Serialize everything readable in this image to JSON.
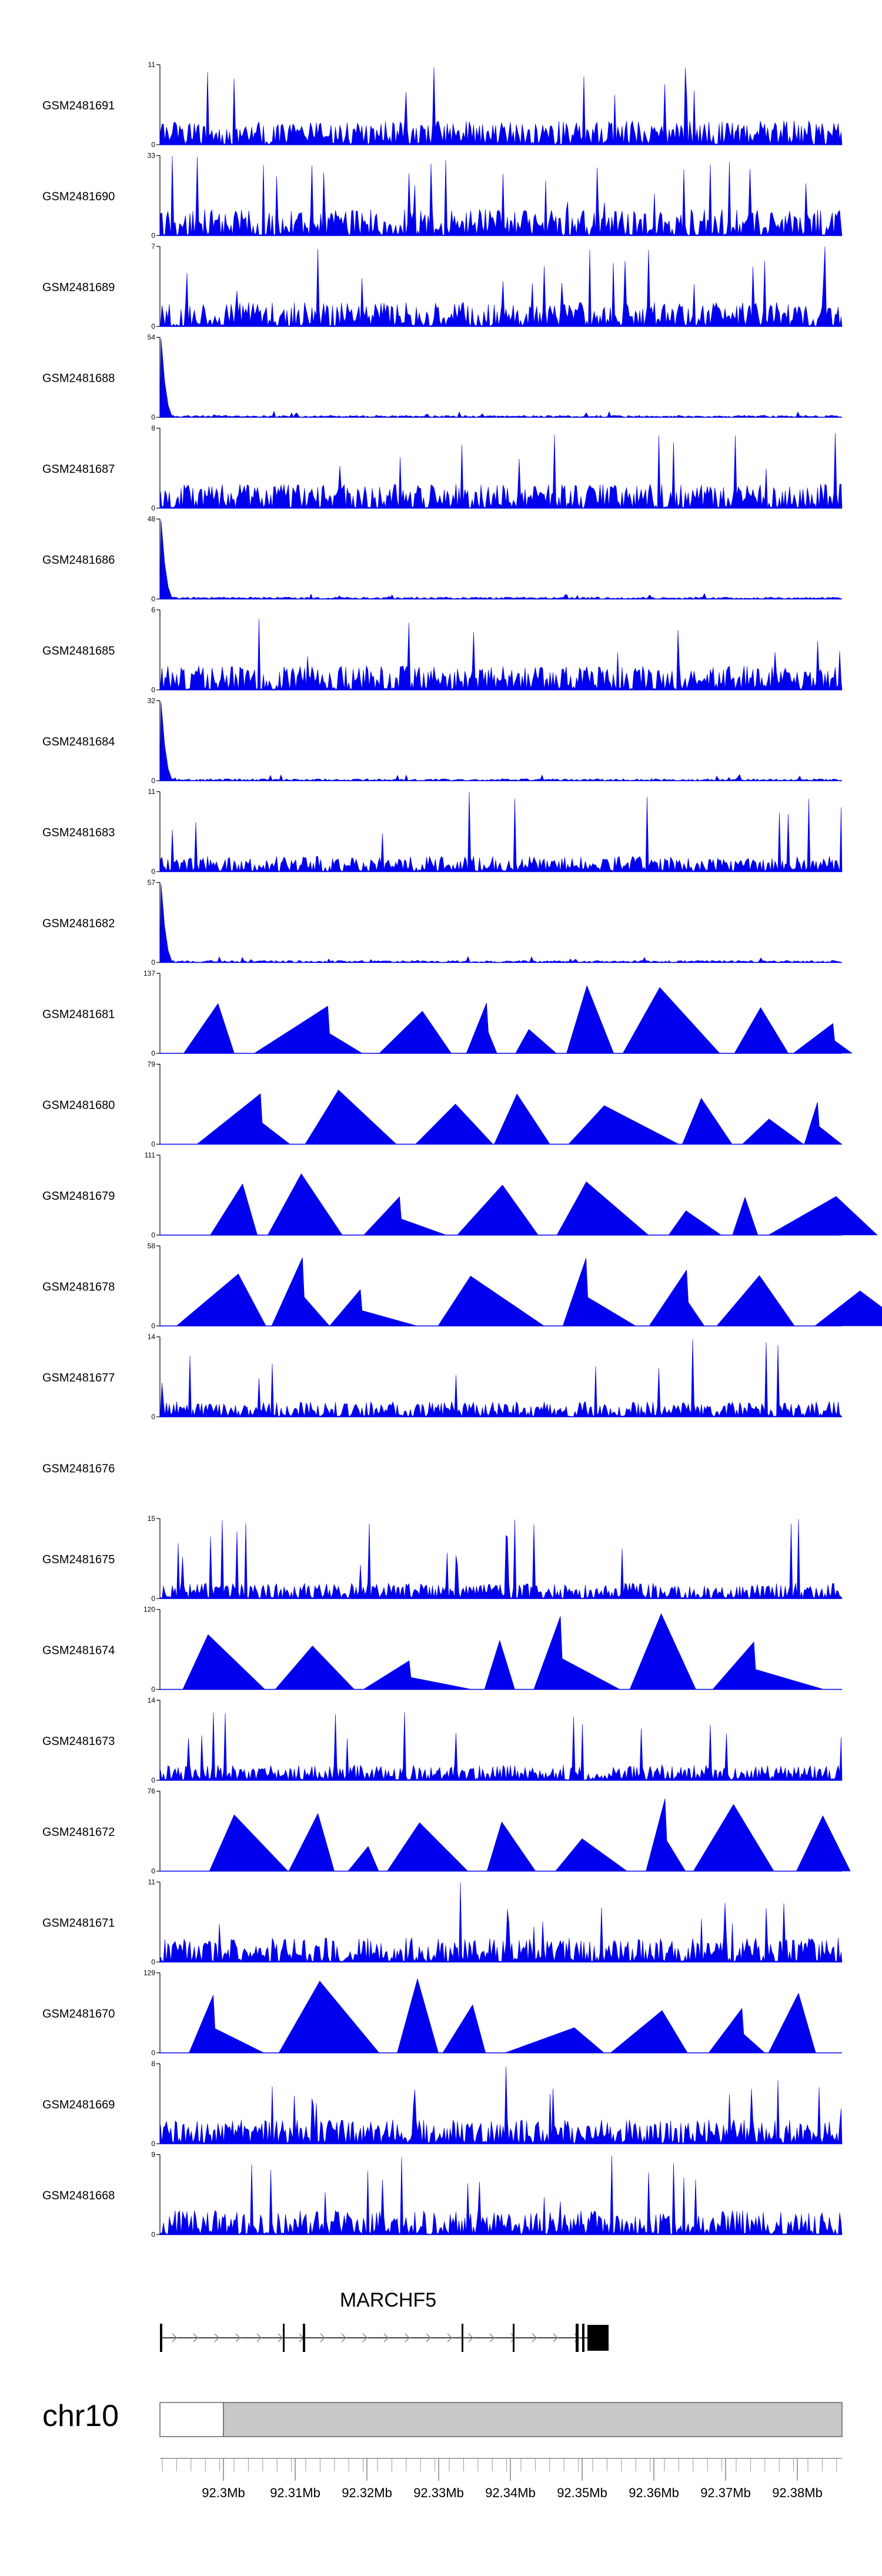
{
  "colors": {
    "signal": "#0000ee",
    "ideogram_fill": "#c8c8c8",
    "ideogram_stroke": "#666666",
    "gene": "#000000",
    "intron_arrow": "#888888"
  },
  "tracks": [
    {
      "id": "GSM2481691",
      "max": "11",
      "min": "0",
      "profile": "dense",
      "seed": 11
    },
    {
      "id": "GSM2481690",
      "max": "33",
      "min": "0",
      "profile": "spiky",
      "seed": 12
    },
    {
      "id": "GSM2481689",
      "max": "7",
      "min": "0",
      "profile": "dense",
      "seed": 13
    },
    {
      "id": "GSM2481688",
      "max": "54",
      "min": "0",
      "profile": "lead",
      "seed": 14
    },
    {
      "id": "GSM2481687",
      "max": "8",
      "min": "0",
      "profile": "dense",
      "seed": 15
    },
    {
      "id": "GSM2481686",
      "max": "48",
      "min": "0",
      "profile": "lead",
      "seed": 16
    },
    {
      "id": "GSM2481685",
      "max": "6",
      "min": "0",
      "profile": "dense",
      "seed": 17
    },
    {
      "id": "GSM2481684",
      "max": "32",
      "min": "0",
      "profile": "lead",
      "seed": 18
    },
    {
      "id": "GSM2481683",
      "max": "11",
      "min": "0",
      "profile": "medium",
      "seed": 19
    },
    {
      "id": "GSM2481682",
      "max": "57",
      "min": "0",
      "profile": "lead",
      "seed": 20
    },
    {
      "id": "GSM2481681",
      "max": "137",
      "min": "0",
      "profile": "sparse",
      "seed": 21
    },
    {
      "id": "GSM2481680",
      "max": "79",
      "min": "0",
      "profile": "sparse",
      "seed": 22
    },
    {
      "id": "GSM2481679",
      "max": "111",
      "min": "0",
      "profile": "sparse",
      "seed": 23
    },
    {
      "id": "GSM2481678",
      "max": "58",
      "min": "0",
      "profile": "sparse",
      "seed": 24
    },
    {
      "id": "GSM2481677",
      "max": "14",
      "min": "0",
      "profile": "medium",
      "seed": 25
    },
    {
      "id": "GSM2481676",
      "max": "",
      "min": "",
      "profile": "empty",
      "seed": 26
    },
    {
      "id": "GSM2481675",
      "max": "15",
      "min": "0",
      "profile": "medium",
      "seed": 27
    },
    {
      "id": "GSM2481674",
      "max": "120",
      "min": "0",
      "profile": "sparse",
      "seed": 28
    },
    {
      "id": "GSM2481673",
      "max": "14",
      "min": "0",
      "profile": "medium",
      "seed": 29
    },
    {
      "id": "GSM2481672",
      "max": "76",
      "min": "0",
      "profile": "sparse",
      "seed": 30
    },
    {
      "id": "GSM2481671",
      "max": "11",
      "min": "0",
      "profile": "dense",
      "seed": 31
    },
    {
      "id": "GSM2481670",
      "max": "129",
      "min": "0",
      "profile": "sparse",
      "seed": 32
    },
    {
      "id": "GSM2481669",
      "max": "8",
      "min": "0",
      "profile": "dense",
      "seed": 33
    },
    {
      "id": "GSM2481668",
      "max": "9",
      "min": "0",
      "profile": "dense",
      "seed": 34
    }
  ],
  "gene": {
    "name": "MARCHF5"
  },
  "chromosome": "chr10",
  "axis_ticks": [
    "92.3Mb",
    "92.31Mb",
    "92.32Mb",
    "92.33Mb",
    "92.34Mb",
    "92.35Mb",
    "92.36Mb",
    "92.37Mb",
    "92.38Mb"
  ]
}
